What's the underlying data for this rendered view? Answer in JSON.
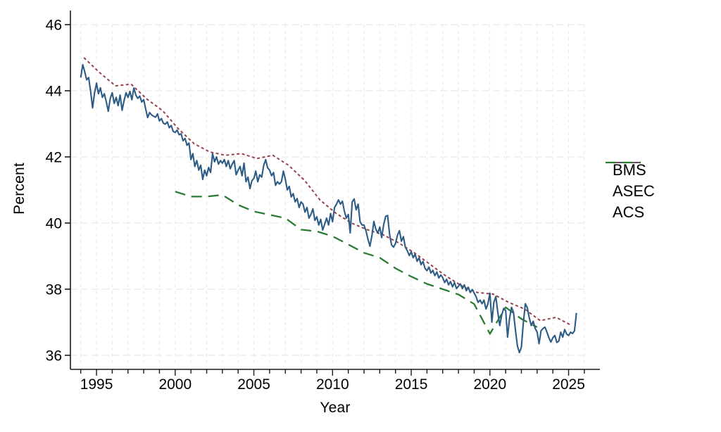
{
  "figure": {
    "background": "#ffffff",
    "title": ""
  },
  "chart_data": {
    "type": "line",
    "title": "",
    "xlabel": "Year",
    "ylabel": "Percent",
    "x_axis": {
      "range": [
        1994,
        2026
      ],
      "labeled_ticks": [
        1995,
        2000,
        2005,
        2010,
        2015,
        2020,
        2025
      ],
      "minor_tick_every_years": 1,
      "grid": "light gray dashed vertical line at every year"
    },
    "y_axis": {
      "range": [
        35.6,
        46.4
      ],
      "ticks": [
        36,
        38,
        40,
        42,
        44,
        46
      ],
      "grid": "light gray dashed horizontal line at every labeled tick"
    },
    "legend_position": "right outside plot, no border",
    "axis_color": "#1a1a1a",
    "grid_color": "#e6e6e6",
    "series": [
      {
        "name": "ASEC",
        "color": "#97414b",
        "style": "short-dash",
        "dash": "4 3.5",
        "width": 2,
        "x_start": 1994.2,
        "x_step": 1,
        "values": [
          45.0,
          44.55,
          44.15,
          44.2,
          43.75,
          43.4,
          42.85,
          42.4,
          42.15,
          42.05,
          42.1,
          41.95,
          42.05,
          41.75,
          41.3,
          40.7,
          40.3,
          40.0,
          39.8,
          39.65,
          39.4,
          39.1,
          38.75,
          38.4,
          38.1,
          37.9,
          37.85,
          37.6,
          37.4,
          37.05,
          37.15,
          36.9
        ]
      },
      {
        "name": "ACS",
        "color": "#2a7c33",
        "style": "long-dash",
        "dash": "15 9",
        "width": 2.3,
        "x_start": 2000,
        "x_step": 1,
        "values": [
          40.95,
          40.8,
          40.8,
          40.85,
          40.55,
          40.35,
          40.25,
          40.15,
          39.8,
          39.75,
          39.6,
          39.35,
          39.1,
          38.95,
          38.63,
          38.38,
          38.16,
          38.0,
          37.84,
          37.55,
          36.65,
          37.45,
          37.1,
          36.85
        ]
      },
      {
        "name": "BMS",
        "color": "#2c5c86",
        "style": "solid",
        "dash": "",
        "width": 2.1,
        "x_start": 1994,
        "x_step": 0.125,
        "values": [
          44.4,
          44.79,
          44.58,
          44.33,
          44.4,
          43.98,
          43.48,
          43.94,
          44.23,
          43.91,
          44.09,
          43.8,
          43.91,
          43.66,
          43.38,
          43.77,
          43.94,
          43.62,
          43.8,
          43.55,
          43.87,
          43.41,
          43.7,
          43.94,
          43.8,
          43.98,
          43.73,
          44.08,
          43.87,
          43.77,
          43.84,
          43.66,
          43.73,
          43.45,
          43.19,
          43.34,
          43.27,
          43.23,
          43.2,
          43.3,
          43.09,
          43.16,
          43.02,
          42.99,
          43.06,
          42.88,
          42.95,
          42.77,
          42.74,
          42.81,
          42.67,
          42.7,
          42.49,
          42.56,
          42.35,
          42.42,
          41.92,
          42.1,
          41.71,
          41.89,
          41.6,
          41.75,
          41.32,
          41.6,
          41.43,
          41.68,
          41.53,
          42.1,
          41.85,
          42.0,
          41.78,
          41.89,
          41.81,
          41.92,
          41.71,
          41.89,
          41.64,
          41.78,
          41.89,
          41.46,
          41.6,
          41.71,
          41.43,
          41.81,
          41.25,
          41.39,
          41.04,
          41.28,
          41.35,
          41.57,
          41.25,
          41.46,
          41.39,
          41.74,
          41.92,
          41.67,
          41.6,
          41.43,
          41.53,
          41.14,
          41.25,
          41.18,
          41.25,
          41.57,
          41.32,
          41.0,
          41.11,
          40.79,
          40.89,
          40.64,
          40.74,
          40.47,
          40.64,
          40.57,
          40.33,
          40.47,
          40.15,
          40.26,
          40.43,
          40.08,
          40.19,
          39.94,
          40.11,
          39.79,
          39.97,
          40.15,
          39.94,
          40.29,
          40.04,
          40.47,
          40.57,
          40.7,
          40.57,
          40.66,
          40.36,
          40.15,
          40.26,
          39.7,
          40.64,
          40.73,
          40.4,
          40.57,
          40.04,
          39.94,
          39.94,
          39.76,
          39.51,
          39.3,
          39.62,
          40.05,
          39.81,
          39.7,
          39.88,
          39.56,
          39.95,
          40.2,
          40.23,
          39.66,
          39.34,
          39.27,
          39.38,
          39.63,
          39.77,
          39.45,
          39.59,
          39.27,
          39.16,
          39.02,
          39.13,
          38.95,
          39.06,
          38.84,
          38.95,
          38.74,
          38.84,
          38.63,
          38.56,
          38.67,
          38.49,
          38.57,
          38.41,
          38.52,
          38.34,
          38.43,
          38.35,
          38.2,
          38.3,
          38.13,
          38.23,
          38.07,
          38.2,
          38.02,
          38.09,
          38.16,
          38.02,
          38.13,
          37.95,
          38.06,
          37.9,
          37.99,
          37.88,
          37.77,
          37.6,
          37.67,
          37.56,
          37.67,
          37.4,
          37.56,
          37.88,
          37.0,
          37.6,
          37.78,
          37.3,
          36.9,
          37.22,
          37.42,
          37.35,
          36.55,
          37.12,
          37.45,
          37.3,
          36.75,
          36.28,
          36.08,
          36.25,
          36.99,
          37.56,
          37.44,
          37.13,
          36.9,
          37.03,
          36.81,
          36.7,
          36.35,
          36.74,
          36.81,
          36.85,
          36.7,
          36.53,
          36.4,
          36.53,
          36.6,
          36.39,
          36.43,
          36.7,
          36.55,
          36.78,
          36.64,
          36.6,
          36.7,
          36.66,
          36.74,
          37.28
        ]
      }
    ],
    "legend_order": [
      "BMS",
      "ASEC",
      "ACS"
    ]
  }
}
